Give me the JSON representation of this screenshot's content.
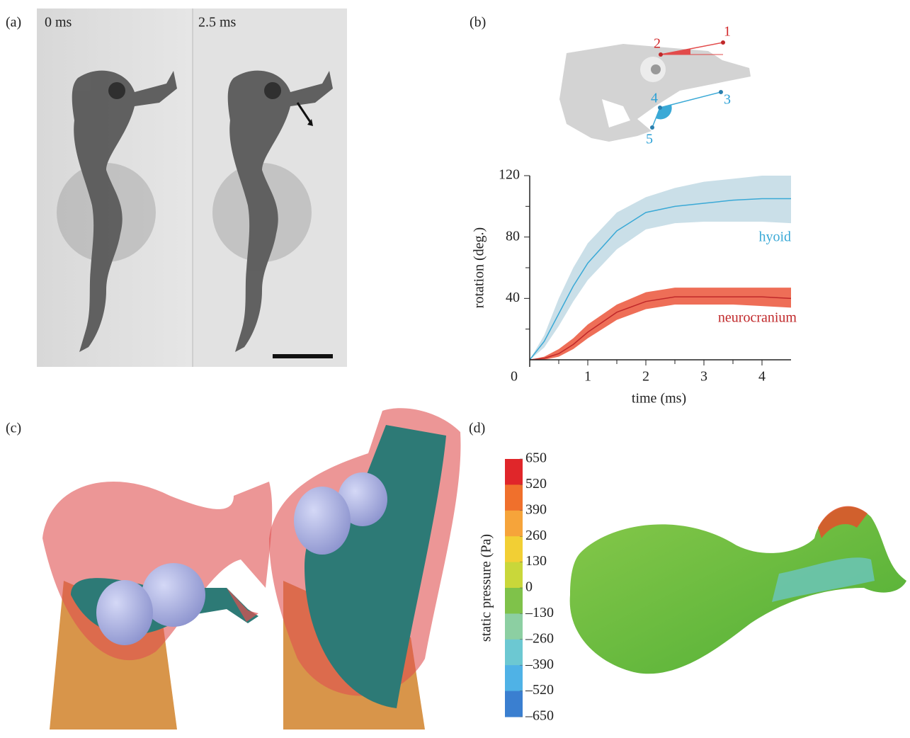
{
  "panels": {
    "a": {
      "label": "(a)",
      "frames": [
        "0 ms",
        "2.5 ms"
      ]
    },
    "b": {
      "label": "(b)",
      "points": [
        "1",
        "2",
        "3",
        "4",
        "5"
      ]
    },
    "c": {
      "label": "(c)"
    },
    "d": {
      "label": "(d)"
    }
  },
  "chart_data": [
    {
      "type": "line",
      "xlabel": "time (ms)",
      "ylabel": "rotation (deg.)",
      "x": [
        0,
        0.25,
        0.5,
        0.75,
        1,
        1.5,
        2,
        2.5,
        3,
        3.5,
        4,
        4.5
      ],
      "xlim": [
        0,
        4.5
      ],
      "ylim": [
        0,
        120
      ],
      "xticks": [
        0,
        1,
        2,
        3,
        4
      ],
      "xminorticks": [
        0.5,
        1.5,
        2.5,
        3.5
      ],
      "yticks": [
        40,
        80,
        120
      ],
      "yminorticks": [
        20,
        60,
        100
      ],
      "series": [
        {
          "name": "hyoid",
          "color": "#3aa9d6",
          "band_color": "#cadfe8",
          "values": [
            0,
            12,
            30,
            48,
            63,
            84,
            96,
            100,
            102,
            104,
            105,
            105
          ],
          "lower": [
            0,
            8,
            22,
            38,
            52,
            72,
            85,
            89,
            90,
            90,
            90,
            89
          ],
          "upper": [
            0,
            16,
            40,
            60,
            76,
            96,
            106,
            112,
            116,
            118,
            120,
            120
          ]
        },
        {
          "name": "neurocranium",
          "color": "#c0282a",
          "band_color": "#ee6e57",
          "values": [
            0,
            1,
            4,
            10,
            18,
            31,
            38,
            41,
            41,
            41,
            41,
            40
          ],
          "lower": [
            0,
            0,
            2,
            7,
            14,
            26,
            33,
            36,
            36,
            36,
            35,
            34
          ],
          "upper": [
            0,
            2,
            7,
            14,
            23,
            36,
            44,
            47,
            47,
            47,
            47,
            47
          ]
        }
      ]
    },
    {
      "type": "colorbar",
      "label": "static pressure (Pa)",
      "ylim": [
        -650,
        650
      ],
      "yticks": [
        650,
        520,
        390,
        260,
        130,
        0,
        {
          "value": -130,
          "label": "–130"
        },
        {
          "value": -260,
          "label": "–260"
        },
        {
          "value": -390,
          "label": "–390"
        },
        {
          "value": -520,
          "label": "–520"
        },
        {
          "value": -650,
          "label": "–650"
        }
      ],
      "colors": [
        "#e0262a",
        "#f0702c",
        "#f6a43a",
        "#f2cf34",
        "#c9d73a",
        "#7fc24a",
        "#8ccfa2",
        "#6cc8d2",
        "#4fb2e6",
        "#3a7fd0"
      ]
    }
  ]
}
